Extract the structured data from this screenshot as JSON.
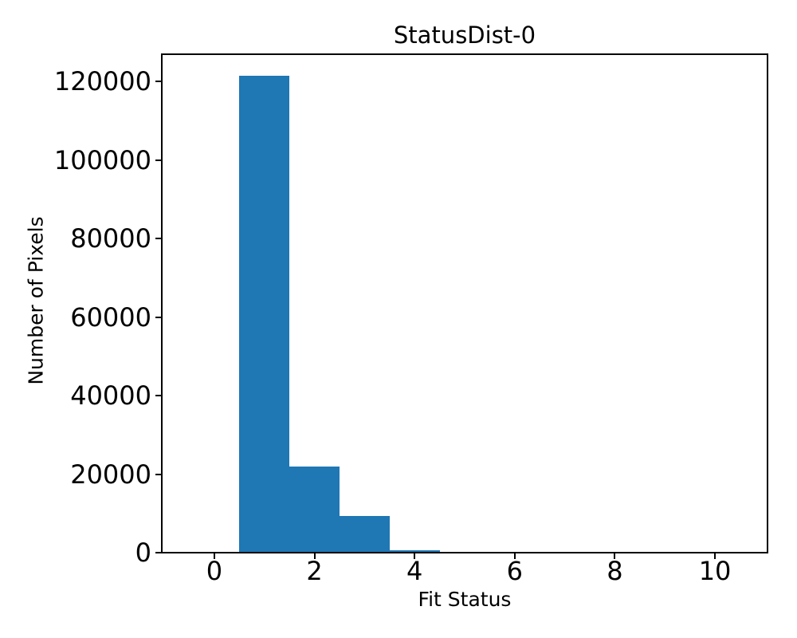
{
  "chart_data": {
    "type": "bar",
    "subtype": "histogram",
    "title": "StatusDist-0",
    "xlabel": "Fit Status",
    "ylabel": "Number of Pixels",
    "bin_edges": [
      -0.5,
      0.5,
      1.5,
      2.5,
      3.5,
      4.5,
      5.5,
      6.5,
      7.5,
      8.5,
      9.5,
      10.5
    ],
    "counts": [
      0,
      121500,
      22000,
      9400,
      600,
      0,
      0,
      0,
      0,
      0,
      0
    ],
    "bar_color": "#1f77b4",
    "axis_color": "#000000",
    "background_color": "#ffffff",
    "xlim": [
      -1.05,
      11.05
    ],
    "ylim": [
      0,
      127000
    ],
    "xticks": [
      0,
      2,
      4,
      6,
      8,
      10
    ],
    "yticks": [
      0,
      20000,
      40000,
      60000,
      80000,
      100000,
      120000
    ],
    "grid": false,
    "legend": null
  }
}
